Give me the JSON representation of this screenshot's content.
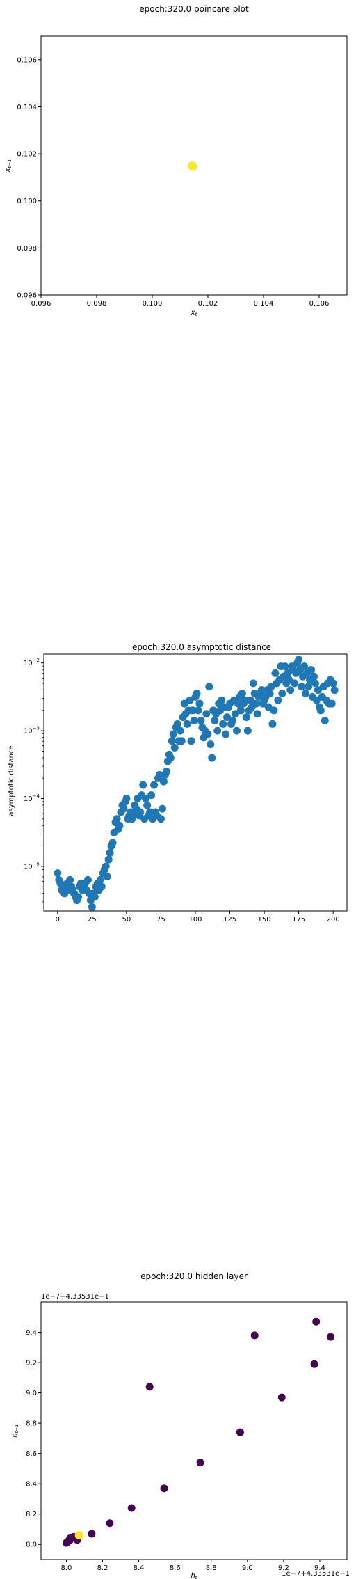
{
  "chart_data": [
    {
      "type": "scatter",
      "title": "epoch:320.0 poincare plot",
      "xlabel": "x_t",
      "ylabel": "x_{t-1}",
      "xlim": [
        0.096,
        0.107
      ],
      "ylim": [
        0.096,
        0.107
      ],
      "xticks": [
        "0.096",
        "0.098",
        "0.100",
        "0.102",
        "0.104",
        "0.106"
      ],
      "yticks": [
        "0.096",
        "0.098",
        "0.100",
        "0.102",
        "0.104",
        "0.106"
      ],
      "xtick_values": [
        0.096,
        0.098,
        0.1,
        0.102,
        0.104,
        0.106
      ],
      "ytick_values": [
        0.096,
        0.098,
        0.1,
        0.102,
        0.104,
        0.106
      ],
      "color": "#fde725",
      "points": [
        [
          0.10145,
          0.10148
        ],
        [
          0.10142,
          0.1015
        ],
        [
          0.10147,
          0.10146
        ],
        [
          0.10144,
          0.10147
        ]
      ]
    },
    {
      "type": "scatter",
      "title": "epoch:320.0 asymptotic distance",
      "xlabel": "iteration",
      "ylabel": "asymptotic distance",
      "xlim": [
        -10,
        210
      ],
      "yscale": "log",
      "ylim": [
        2.2e-06,
        0.0135
      ],
      "xticks": [
        "0",
        "25",
        "50",
        "75",
        "100",
        "125",
        "150",
        "175",
        "200"
      ],
      "xtick_values": [
        0,
        25,
        50,
        75,
        100,
        125,
        150,
        175,
        200
      ],
      "yticks": [
        "10^-5",
        "10^-4",
        "10^-3",
        "10^-2"
      ],
      "ytick_values": [
        1e-05,
        0.0001,
        0.001,
        0.01
      ],
      "color": "#1f77b4",
      "y_log10": [
        -5.1,
        -5.2,
        -5.25,
        -5.35,
        -5.3,
        -5.4,
        -5.3,
        -5.25,
        -5.35,
        -5.2,
        -5.3,
        -5.35,
        -5.4,
        -5.45,
        -5.5,
        -5.45,
        -5.3,
        -5.25,
        -5.35,
        -5.3,
        -5.25,
        -5.35,
        -5.2,
        -5.4,
        -5.5,
        -5.6,
        -5.4,
        -5.45,
        -5.3,
        -5.25,
        -5.35,
        -5.2,
        -5.3,
        -5.1,
        -5.05,
        -5.0,
        -5.15,
        -4.9,
        -4.8,
        -4.7,
        -4.65,
        -4.5,
        -4.35,
        -4.3,
        -4.45,
        -4.4,
        -4.2,
        -4.1,
        -4.15,
        -4.05,
        -4.0,
        -4.3,
        -4.25,
        -4.2,
        -4.3,
        -4.25,
        -4.1,
        -4.15,
        -4.0,
        -4.25,
        -4.2,
        -3.95,
        -3.8,
        -4.3,
        -4.0,
        -4.1,
        -4.25,
        -4.2,
        -3.95,
        -4.3,
        -3.8,
        -4.2,
        -4.25,
        -3.7,
        -3.65,
        -4.3,
        -4.15,
        -3.75,
        -3.65,
        -3.6,
        -3.45,
        -3.35,
        -3.4,
        -3.15,
        -3.05,
        -3.25,
        -2.95,
        -2.9,
        -3.15,
        -3.0,
        -3.15,
        -2.8,
        -2.6,
        -2.75,
        -2.9,
        -2.7,
        -2.55,
        -3.15,
        -2.7,
        -2.85,
        -2.5,
        -2.45,
        -2.7,
        -2.6,
        -2.85,
        -2.95,
        -3.1,
        -3.0,
        -2.75,
        -3.05,
        -2.35,
        -3.2,
        -3.4,
        -2.7,
        -2.85,
        -2.75,
        -3.0,
        -2.6,
        -2.7,
        -2.55,
        -2.9,
        -2.65,
        -3.05,
        -2.8,
        -2.65,
        -2.6,
        -2.9,
        -2.85,
        -2.55,
        -2.75,
        -3.0,
        -2.6,
        -2.5,
        -2.7,
        -2.45,
        -2.6,
        -2.55,
        -2.8,
        -3.0,
        -2.7,
        -2.55,
        -2.65,
        -2.3,
        -2.45,
        -2.6,
        -2.75,
        -2.5,
        -2.45,
        -2.4,
        -2.6,
        -2.55,
        -2.5,
        -2.4,
        -2.65,
        -2.45,
        -2.35,
        -2.9,
        -2.7,
        -2.15,
        -2.3,
        -2.55,
        -2.25,
        -2.05,
        -2.45,
        -2.2,
        -2.05,
        -2.3,
        -2.15,
        -2.25,
        -2.4,
        -2.05,
        -2.1,
        -2.3,
        -2.15,
        -2.0,
        -1.95,
        -2.1,
        -2.35,
        -2.2,
        -2.05,
        -2.45,
        -2.15,
        -2.35,
        -2.25,
        -2.1,
        -2.5,
        -2.2,
        -2.3,
        -2.55,
        -2.4,
        -2.65,
        -2.7,
        -2.5,
        -2.35,
        -2.85,
        -2.55,
        -2.3,
        -2.6,
        -2.25,
        -2.6,
        -2.3,
        -2.4
      ]
    },
    {
      "type": "scatter",
      "title": "epoch:320.0 hidden layer",
      "xlabel": "h_t",
      "ylabel": "h_{t-1}",
      "offset_label": "1e−7+4.33531e−1",
      "xlim": [
        7.86,
        9.55
      ],
      "ylim": [
        7.9,
        9.6
      ],
      "xticks": [
        "8.0",
        "8.2",
        "8.4",
        "8.6",
        "8.8",
        "9.0",
        "9.2",
        "9.4"
      ],
      "xtick_values": [
        8.0,
        8.2,
        8.4,
        8.6,
        8.8,
        9.0,
        9.2,
        9.4
      ],
      "yticks": [
        "8.0",
        "8.2",
        "8.4",
        "8.6",
        "8.8",
        "9.0",
        "9.2",
        "9.4"
      ],
      "ytick_values": [
        8.0,
        8.2,
        8.4,
        8.6,
        8.8,
        9.0,
        9.2,
        9.4
      ],
      "dark_color": "#440154",
      "light_color": "#fde725",
      "points_dark": [
        [
          8.0,
          8.01
        ],
        [
          8.005,
          8.015
        ],
        [
          8.01,
          8.02
        ],
        [
          8.02,
          8.03
        ],
        [
          8.02,
          8.04
        ],
        [
          8.03,
          8.045
        ],
        [
          8.04,
          8.05
        ],
        [
          8.06,
          8.03
        ],
        [
          8.14,
          8.07
        ],
        [
          8.24,
          8.14
        ],
        [
          8.36,
          8.24
        ],
        [
          8.54,
          8.37
        ],
        [
          8.74,
          8.54
        ],
        [
          8.96,
          8.74
        ],
        [
          9.19,
          8.97
        ],
        [
          9.37,
          9.19
        ],
        [
          9.46,
          9.37
        ],
        [
          9.38,
          9.47
        ],
        [
          9.04,
          9.38
        ],
        [
          8.46,
          9.04
        ]
      ],
      "points_light": [
        [
          8.07,
          8.06
        ]
      ]
    }
  ]
}
